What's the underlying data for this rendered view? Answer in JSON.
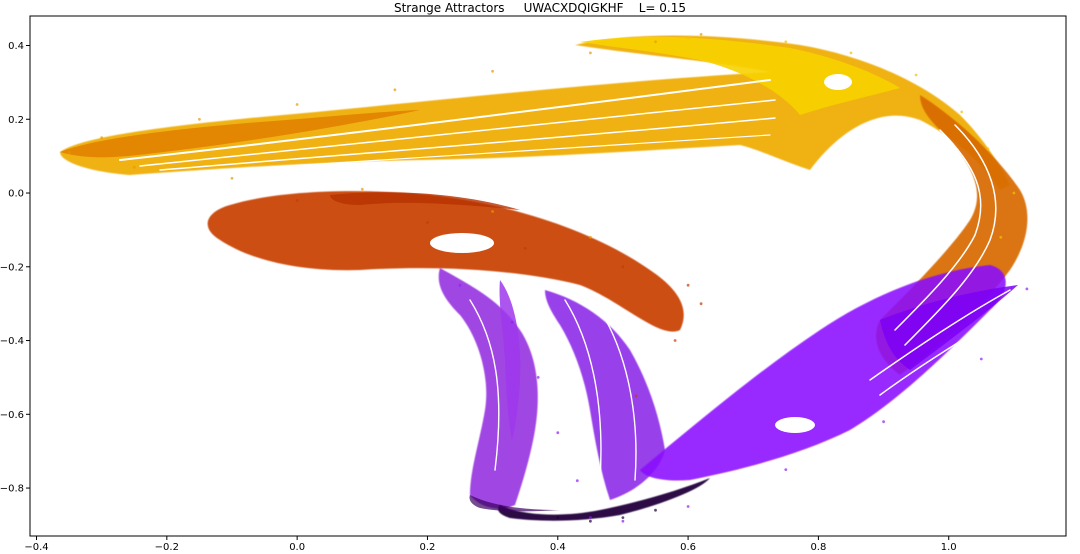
{
  "chart_data": {
    "type": "scatter",
    "title": "Strange Attractors     UWACXDQIGKHF    L= 0.15",
    "xlabel": "",
    "ylabel": "",
    "xlim": [
      -0.41,
      1.18
    ],
    "ylim": [
      -0.93,
      0.48
    ],
    "x_ticks": [
      -0.4,
      -0.2,
      0.0,
      0.2,
      0.4,
      0.6,
      0.8,
      1.0
    ],
    "x_tick_labels": [
      "−0.4",
      "−0.2",
      "0.0",
      "0.2",
      "0.4",
      "0.6",
      "0.8",
      "1.0"
    ],
    "y_ticks": [
      0.4,
      0.2,
      0.0,
      -0.2,
      -0.4,
      -0.6,
      -0.8
    ],
    "y_tick_labels": [
      "0.4",
      "0.2",
      "0.0",
      "−0.2",
      "−0.4",
      "−0.6",
      "−0.8"
    ],
    "grid": false,
    "legend": "none",
    "colormap": [
      "#1a0033",
      "#8000ff",
      "#c43c00",
      "#f0a000",
      "#ffff00"
    ],
    "series": [
      {
        "color": "#e89a00",
        "values": [
          [
            0.62,
            0.43
          ],
          [
            0.55,
            0.41
          ],
          [
            0.45,
            0.38
          ],
          [
            0.3,
            0.33
          ],
          [
            0.15,
            0.28
          ],
          [
            0.0,
            0.24
          ],
          [
            -0.15,
            0.2
          ],
          [
            -0.3,
            0.15
          ],
          [
            -0.35,
            0.11
          ],
          [
            -0.25,
            0.07
          ],
          [
            -0.1,
            0.04
          ],
          [
            0.1,
            0.01
          ],
          [
            0.3,
            -0.05
          ],
          [
            0.45,
            -0.12
          ]
        ]
      },
      {
        "color": "#f3c200",
        "values": [
          [
            0.6,
            0.42
          ],
          [
            0.75,
            0.41
          ],
          [
            0.85,
            0.38
          ],
          [
            0.95,
            0.32
          ],
          [
            1.02,
            0.22
          ],
          [
            1.06,
            0.12
          ],
          [
            1.1,
            0.0
          ],
          [
            1.08,
            -0.12
          ]
        ]
      },
      {
        "color": "#c43c00",
        "values": [
          [
            0.0,
            -0.02
          ],
          [
            0.2,
            -0.08
          ],
          [
            0.35,
            -0.15
          ],
          [
            0.5,
            -0.2
          ],
          [
            0.6,
            -0.25
          ],
          [
            0.62,
            -0.3
          ],
          [
            0.58,
            -0.4
          ],
          [
            0.52,
            -0.55
          ]
        ]
      },
      {
        "color": "#9020f0",
        "values": [
          [
            0.25,
            -0.25
          ],
          [
            0.33,
            -0.35
          ],
          [
            0.37,
            -0.5
          ],
          [
            0.4,
            -0.65
          ],
          [
            0.43,
            -0.78
          ],
          [
            0.45,
            -0.88
          ],
          [
            0.5,
            -0.89
          ],
          [
            0.6,
            -0.85
          ],
          [
            0.75,
            -0.75
          ],
          [
            0.9,
            -0.62
          ],
          [
            1.05,
            -0.45
          ],
          [
            1.12,
            -0.26
          ]
        ]
      },
      {
        "color": "#1a0033",
        "values": [
          [
            0.4,
            -0.88
          ],
          [
            0.45,
            -0.89
          ],
          [
            0.5,
            -0.88
          ],
          [
            0.55,
            -0.86
          ]
        ]
      }
    ]
  }
}
